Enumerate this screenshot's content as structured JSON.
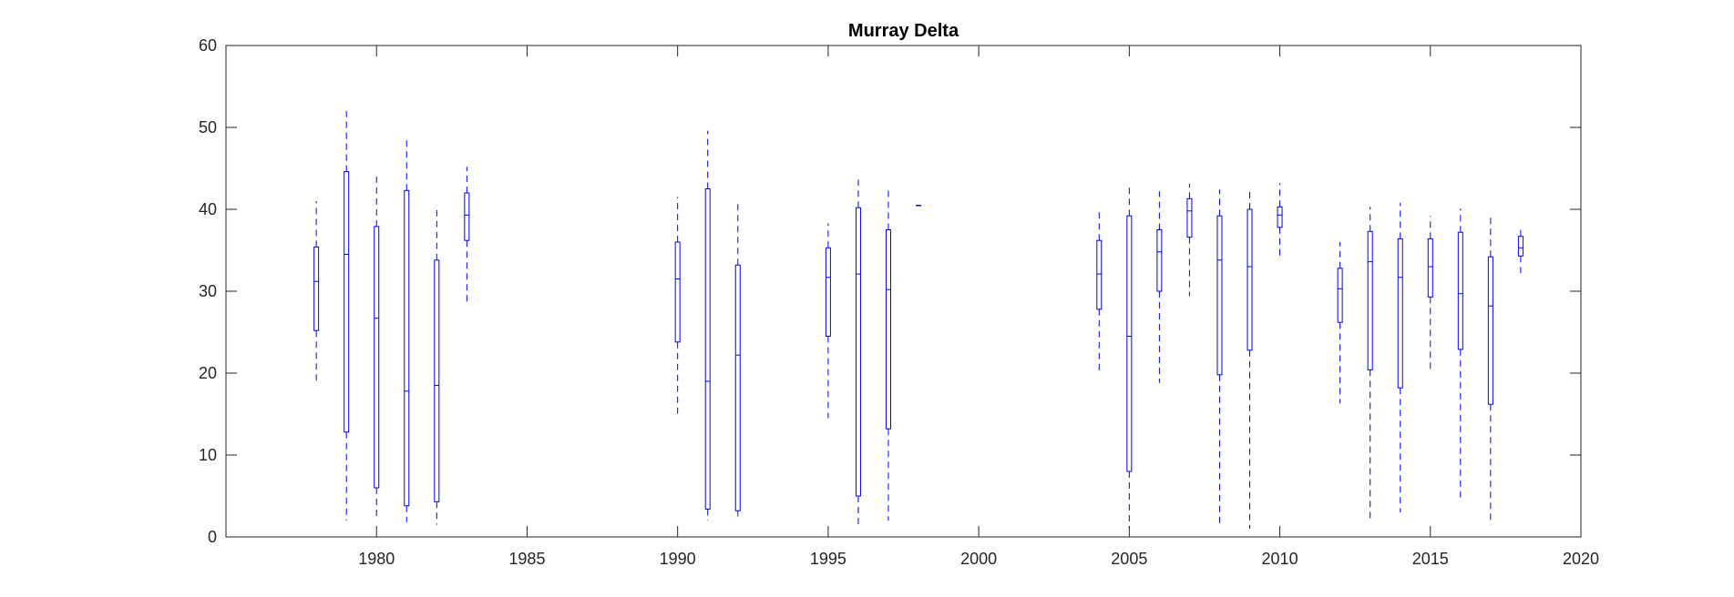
{
  "chart_data": {
    "type": "box",
    "title": "Murray Delta",
    "xlabel": "",
    "ylabel": "",
    "xlim": [
      1975,
      2020
    ],
    "ylim": [
      0,
      60
    ],
    "xticks": [
      1980,
      1985,
      1990,
      1995,
      2000,
      2005,
      2010,
      2015,
      2020
    ],
    "yticks": [
      0,
      10,
      20,
      30,
      40,
      50,
      60
    ],
    "grid": false,
    "colors": {
      "box": "#0000ff",
      "axes": "#262626",
      "background": "#ffffff"
    },
    "boxes": [
      {
        "x": 1978,
        "min": 18.5,
        "q1": 25.2,
        "median": 31.2,
        "q3": 35.4,
        "max": 41.0
      },
      {
        "x": 1979,
        "min": 2.0,
        "q1": 12.8,
        "median": 34.5,
        "q3": 44.6,
        "max": 52.0
      },
      {
        "x": 1980,
        "min": 2.0,
        "q1": 6.0,
        "median": 26.7,
        "q3": 37.9,
        "max": 44.0
      },
      {
        "x": 1981,
        "min": 1.8,
        "q1": 3.8,
        "median": 17.8,
        "q3": 42.3,
        "max": 48.8
      },
      {
        "x": 1982,
        "min": 1.5,
        "q1": 4.3,
        "median": 18.5,
        "q3": 33.8,
        "max": 40.5
      },
      {
        "x": 1983,
        "min": 28.3,
        "q1": 36.2,
        "median": 39.3,
        "q3": 42.0,
        "max": 45.2
      },
      {
        "x": 1990,
        "min": 14.8,
        "q1": 23.8,
        "median": 31.5,
        "q3": 36.0,
        "max": 41.5
      },
      {
        "x": 1991,
        "min": 2.0,
        "q1": 3.4,
        "median": 19.0,
        "q3": 42.5,
        "max": 49.6
      },
      {
        "x": 1992,
        "min": 2.5,
        "q1": 3.2,
        "median": 22.2,
        "q3": 33.2,
        "max": 40.8
      },
      {
        "x": 1995,
        "min": 14.5,
        "q1": 24.5,
        "median": 31.7,
        "q3": 35.3,
        "max": 38.3
      },
      {
        "x": 1996,
        "min": 1.0,
        "q1": 5.0,
        "median": 32.1,
        "q3": 40.2,
        "max": 44.0
      },
      {
        "x": 1997,
        "min": 2.0,
        "q1": 13.2,
        "median": 30.2,
        "q3": 37.5,
        "max": 42.7
      },
      {
        "x": 1998,
        "min": 40.5,
        "q1": 40.5,
        "median": 40.5,
        "q3": 40.5,
        "max": 40.5
      },
      {
        "x": 2004,
        "min": 20.2,
        "q1": 27.8,
        "median": 32.1,
        "q3": 36.2,
        "max": 40.0
      },
      {
        "x": 2005,
        "min": 1.0,
        "q1": 8.0,
        "median": 24.5,
        "q3": 39.2,
        "max": 43.0
      },
      {
        "x": 2006,
        "min": 18.8,
        "q1": 30.0,
        "median": 34.8,
        "q3": 37.5,
        "max": 42.2
      },
      {
        "x": 2007,
        "min": 29.4,
        "q1": 36.6,
        "median": 39.8,
        "q3": 41.3,
        "max": 43.1
      },
      {
        "x": 2008,
        "min": 1.2,
        "q1": 19.8,
        "median": 33.8,
        "q3": 39.2,
        "max": 42.4
      },
      {
        "x": 2009,
        "min": 1.0,
        "q1": 22.8,
        "median": 33.0,
        "q3": 40.0,
        "max": 42.3
      },
      {
        "x": 2010,
        "min": 33.8,
        "q1": 37.8,
        "median": 39.3,
        "q3": 40.3,
        "max": 43.2
      },
      {
        "x": 2012,
        "min": 16.3,
        "q1": 26.2,
        "median": 30.3,
        "q3": 32.8,
        "max": 36.0
      },
      {
        "x": 2013,
        "min": 2.0,
        "q1": 20.4,
        "median": 33.6,
        "q3": 37.3,
        "max": 40.3
      },
      {
        "x": 2014,
        "min": 3.0,
        "q1": 18.2,
        "median": 31.7,
        "q3": 36.4,
        "max": 40.8
      },
      {
        "x": 2015,
        "min": 20.0,
        "q1": 29.3,
        "median": 33.0,
        "q3": 36.4,
        "max": 39.2
      },
      {
        "x": 2016,
        "min": 4.8,
        "q1": 22.9,
        "median": 29.7,
        "q3": 37.2,
        "max": 40.1
      },
      {
        "x": 2017,
        "min": 1.5,
        "q1": 16.2,
        "median": 28.2,
        "q3": 34.2,
        "max": 39.4
      },
      {
        "x": 2018,
        "min": 31.9,
        "q1": 34.3,
        "median": 35.3,
        "q3": 36.7,
        "max": 37.9
      }
    ]
  }
}
